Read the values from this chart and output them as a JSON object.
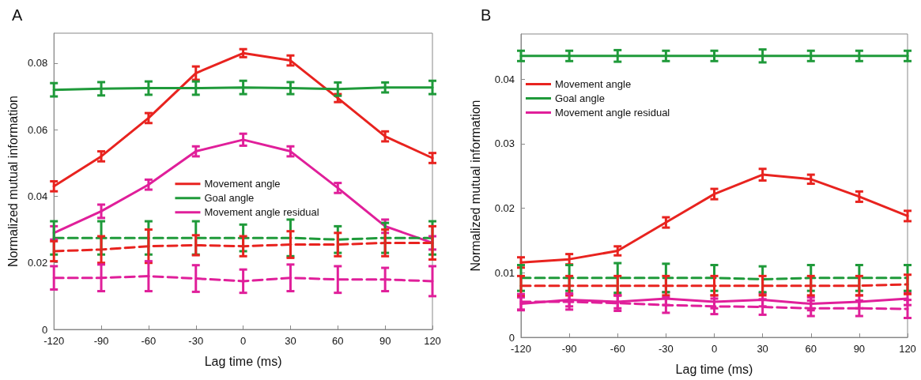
{
  "chart_data": [
    {
      "type": "line",
      "title": "A",
      "xlabel": "Lag time (ms)",
      "ylabel": "Normalized mutual information",
      "x": [
        -120,
        -90,
        -60,
        -30,
        0,
        30,
        60,
        90,
        120
      ],
      "xlim": [
        -120,
        120
      ],
      "xticks": [
        -120,
        -90,
        -60,
        -30,
        0,
        30,
        60,
        90,
        120
      ],
      "ylim": [
        0,
        0.089
      ],
      "yticks": [
        0,
        0.02,
        0.04,
        0.06,
        0.08
      ],
      "grid": false,
      "legend": "center",
      "marker": "none",
      "series": [
        {
          "name": "Movement angle",
          "color": "#e8231f",
          "line_style": "solid",
          "values": [
            0.043,
            0.052,
            0.0635,
            0.077,
            0.083,
            0.0808,
            0.0695,
            0.058,
            0.0515
          ],
          "errors": [
            0.0015,
            0.0015,
            0.0015,
            0.002,
            0.0012,
            0.0015,
            0.0012,
            0.0015,
            0.0015
          ]
        },
        {
          "name": "Goal angle",
          "color": "#1f9a3a",
          "line_style": "solid",
          "values": [
            0.072,
            0.0723,
            0.0725,
            0.0725,
            0.0727,
            0.0725,
            0.0722,
            0.0727,
            0.0727
          ],
          "errors": [
            0.002,
            0.002,
            0.002,
            0.002,
            0.002,
            0.0018,
            0.002,
            0.0015,
            0.002
          ]
        },
        {
          "name": "Movement angle residual",
          "color": "#e01f9a",
          "line_style": "solid",
          "values": [
            0.029,
            0.0355,
            0.0435,
            0.0535,
            0.057,
            0.0535,
            0.0425,
            0.031,
            0.026
          ],
          "errors": [
            0.002,
            0.002,
            0.0015,
            0.0015,
            0.0018,
            0.0015,
            0.0015,
            0.002,
            0.002
          ]
        },
        {
          "color": "#1f9a3a",
          "line_style": "dashed",
          "values": [
            0.0275,
            0.0275,
            0.0275,
            0.0275,
            0.0275,
            0.0275,
            0.027,
            0.0275,
            0.0275
          ],
          "errors": [
            0.005,
            0.005,
            0.005,
            0.005,
            0.004,
            0.0055,
            0.004,
            0.0045,
            0.005
          ]
        },
        {
          "color": "#e8231f",
          "line_style": "dashed",
          "values": [
            0.0235,
            0.024,
            0.025,
            0.0253,
            0.025,
            0.0255,
            0.0255,
            0.026,
            0.026
          ],
          "errors": [
            0.003,
            0.004,
            0.005,
            0.003,
            0.003,
            0.004,
            0.0035,
            0.004,
            0.005
          ]
        },
        {
          "color": "#e01f9a",
          "line_style": "dashed",
          "values": [
            0.0155,
            0.0155,
            0.016,
            0.0153,
            0.0145,
            0.0155,
            0.015,
            0.015,
            0.0145
          ],
          "errors": [
            0.0035,
            0.004,
            0.0045,
            0.004,
            0.0035,
            0.004,
            0.004,
            0.0035,
            0.0045
          ]
        }
      ]
    },
    {
      "type": "line",
      "title": "B",
      "xlabel": "Lag time (ms)",
      "ylabel": "Normalized mutual information",
      "x": [
        -120,
        -90,
        -60,
        -30,
        0,
        30,
        60,
        90,
        120
      ],
      "xlim": [
        -120,
        120
      ],
      "xticks": [
        -120,
        -90,
        -60,
        -30,
        0,
        30,
        60,
        90,
        120
      ],
      "ylim": [
        0,
        0.047
      ],
      "yticks": [
        0,
        0.01,
        0.02,
        0.03,
        0.04
      ],
      "grid": false,
      "legend": "top left",
      "marker": "none",
      "series": [
        {
          "name": "Movement angle",
          "color": "#e8231f",
          "line_style": "solid",
          "values": [
            0.0116,
            0.0121,
            0.0134,
            0.0178,
            0.0222,
            0.0252,
            0.0245,
            0.0218,
            0.0188
          ],
          "errors": [
            0.0008,
            0.0008,
            0.0007,
            0.0008,
            0.0008,
            0.0009,
            0.0007,
            0.0008,
            0.0008
          ]
        },
        {
          "name": "Goal angle",
          "color": "#1f9a3a",
          "line_style": "solid",
          "values": [
            0.0436,
            0.0436,
            0.0436,
            0.0436,
            0.0436,
            0.0436,
            0.0436,
            0.0436,
            0.0436
          ],
          "errors": [
            0.0008,
            0.0008,
            0.0009,
            0.0008,
            0.0008,
            0.001,
            0.0008,
            0.0008,
            0.0008
          ]
        },
        {
          "name": "Movement angle residual",
          "color": "#e01f9a",
          "line_style": "solid",
          "values": [
            0.0052,
            0.0058,
            0.0055,
            0.006,
            0.0055,
            0.0058,
            0.0052,
            0.0055,
            0.006
          ],
          "errors": [
            0.001,
            0.001,
            0.001,
            0.001,
            0.001,
            0.001,
            0.001,
            0.001,
            0.001
          ]
        },
        {
          "color": "#1f9a3a",
          "line_style": "dashed",
          "values": [
            0.0092,
            0.0092,
            0.0092,
            0.0092,
            0.0092,
            0.009,
            0.0092,
            0.0092,
            0.0092
          ],
          "errors": [
            0.002,
            0.002,
            0.0023,
            0.0022,
            0.002,
            0.002,
            0.002,
            0.002,
            0.002
          ]
        },
        {
          "color": "#e8231f",
          "line_style": "dashed",
          "values": [
            0.008,
            0.008,
            0.008,
            0.008,
            0.008,
            0.008,
            0.008,
            0.008,
            0.0082
          ],
          "errors": [
            0.0015,
            0.0015,
            0.0015,
            0.0015,
            0.0015,
            0.0015,
            0.0015,
            0.0015,
            0.0015
          ]
        },
        {
          "color": "#e01f9a",
          "line_style": "dashed",
          "values": [
            0.0055,
            0.0055,
            0.0053,
            0.005,
            0.0048,
            0.0047,
            0.0045,
            0.0045,
            0.0044
          ],
          "errors": [
            0.0012,
            0.0012,
            0.0012,
            0.0012,
            0.0012,
            0.0012,
            0.0012,
            0.0012,
            0.0014
          ]
        }
      ]
    }
  ]
}
